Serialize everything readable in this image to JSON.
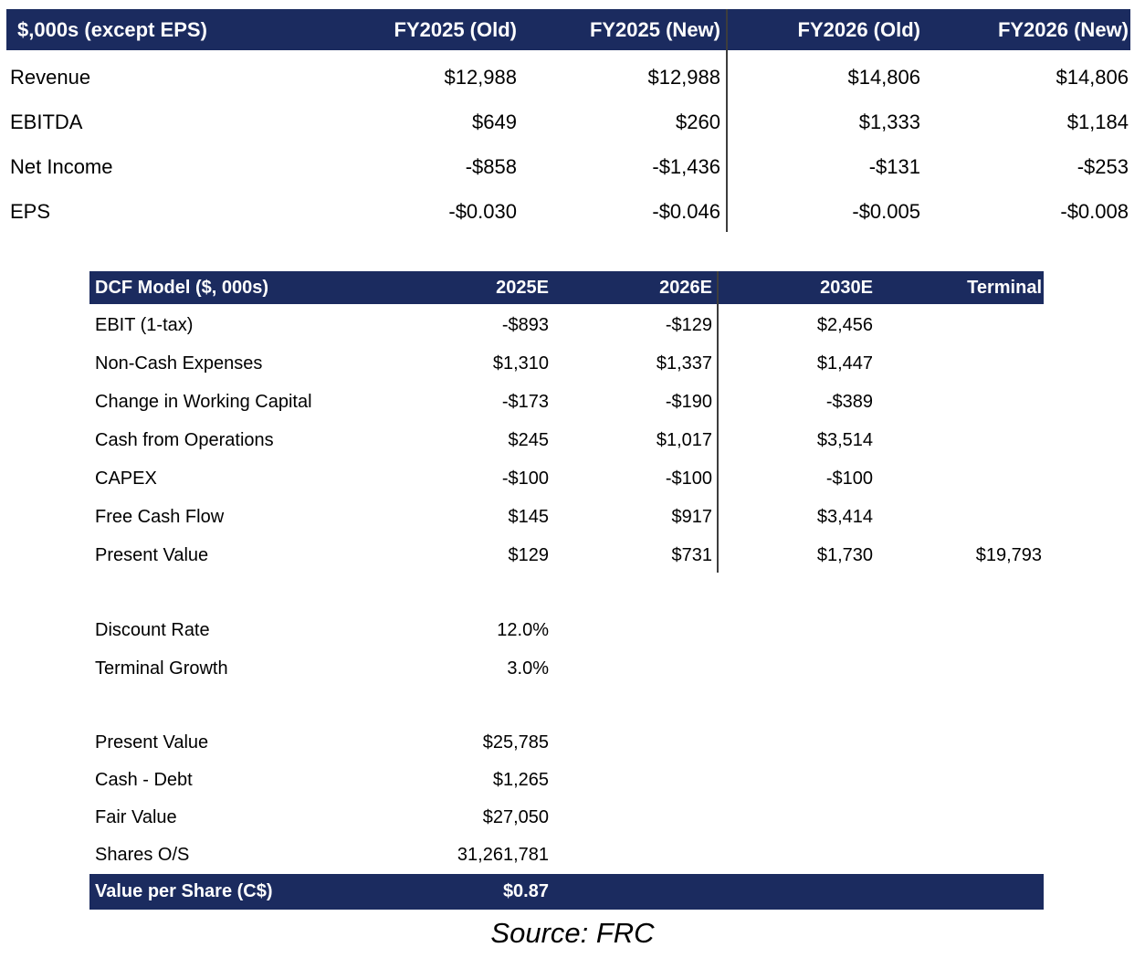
{
  "colors": {
    "header_navy": "#1b2b5f",
    "divider_gray": "#3d3d3d",
    "text": "#000000",
    "header_text": "#ffffff"
  },
  "forecast_table": {
    "header": [
      "$,000s (except EPS)",
      "FY2025 (Old)",
      "FY2025 (New)",
      "FY2026 (Old)",
      "FY2026 (New)"
    ],
    "rows": [
      {
        "label": "Revenue",
        "values": [
          "$12,988",
          "$12,988",
          "$14,806",
          "$14,806"
        ]
      },
      {
        "label": "EBITDA",
        "values": [
          "$649",
          "$260",
          "$1,333",
          "$1,184"
        ]
      },
      {
        "label": "Net Income",
        "values": [
          "-$858",
          "-$1,436",
          "-$131",
          "-$253"
        ]
      },
      {
        "label": "EPS",
        "values": [
          "-$0.030",
          "-$0.046",
          "-$0.005",
          "-$0.008"
        ]
      }
    ]
  },
  "dcf_table": {
    "header": [
      "DCF Model ($, 000s)",
      "2025E",
      "2026E",
      "2030E",
      "Terminal"
    ],
    "rows": [
      {
        "label": "EBIT (1-tax)",
        "values": [
          "-$893",
          "-$129",
          "$2,456",
          ""
        ]
      },
      {
        "label": "Non-Cash Expenses",
        "values": [
          "$1,310",
          "$1,337",
          "$1,447",
          ""
        ]
      },
      {
        "label": "Change in Working Capital",
        "values": [
          "-$173",
          "-$190",
          "-$389",
          ""
        ]
      },
      {
        "label": "Cash from Operations",
        "values": [
          "$245",
          "$1,017",
          "$3,514",
          ""
        ]
      },
      {
        "label": "CAPEX",
        "values": [
          "-$100",
          "-$100",
          "-$100",
          ""
        ]
      },
      {
        "label": "Free Cash Flow",
        "values": [
          "$145",
          "$917",
          "$3,414",
          ""
        ]
      },
      {
        "label": "Present Value",
        "values": [
          "$129",
          "$731",
          "$1,730",
          "$19,793"
        ]
      }
    ],
    "assumptions": [
      {
        "label": "Discount Rate",
        "value": "12.0%"
      },
      {
        "label": "Terminal Growth",
        "value": "3.0%"
      }
    ],
    "valuation": [
      {
        "label": "Present Value",
        "value": "$25,785"
      },
      {
        "label": "Cash - Debt",
        "value": "$1,265"
      },
      {
        "label": "Fair Value",
        "value": "$27,050"
      },
      {
        "label": "Shares O/S",
        "value": "31,261,781"
      }
    ],
    "result": {
      "label": "Value per Share (C$)",
      "value": "$0.87"
    }
  },
  "source": "Source: FRC"
}
